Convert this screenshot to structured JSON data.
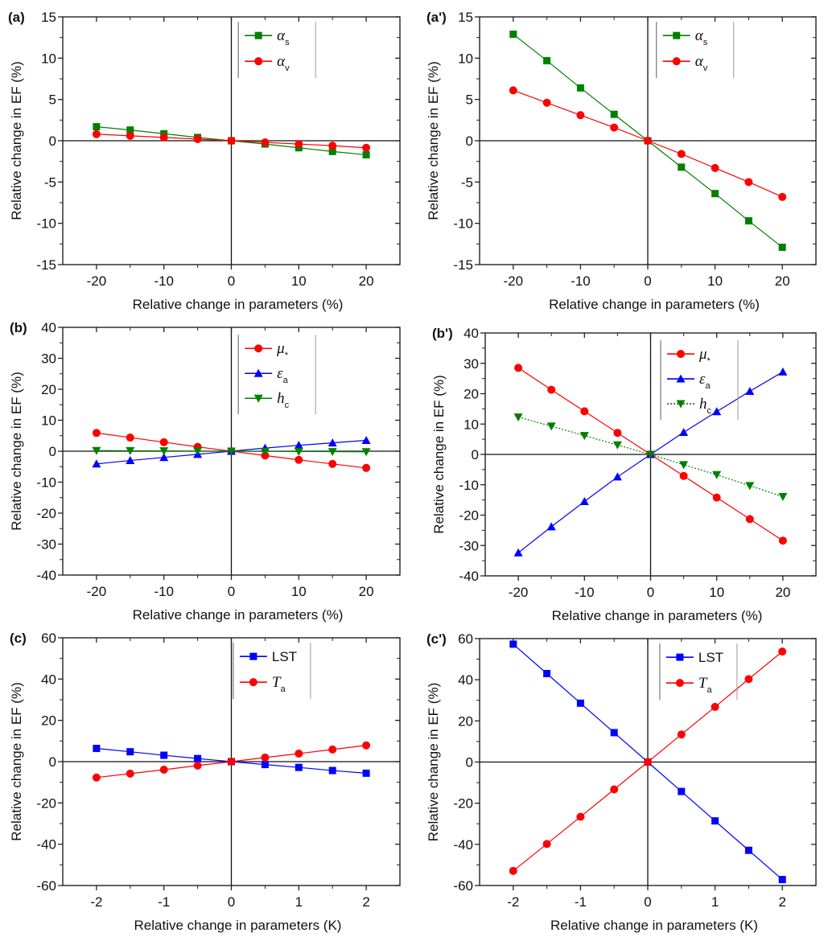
{
  "chart_data": [
    {
      "id": "a",
      "panel_label": "(a)",
      "type": "line",
      "xlabel": "Relative change in parameters (%)",
      "ylabel": "Relative change in EF (%)",
      "xlim": [
        -25,
        25
      ],
      "ylim": [
        -15,
        15
      ],
      "xticks": [
        -20,
        -10,
        0,
        10,
        20
      ],
      "xminor": [
        -15,
        -5,
        5,
        15
      ],
      "yticks": [
        -15,
        -10,
        -5,
        0,
        5,
        10,
        15
      ],
      "x": [
        -20,
        -15,
        -10,
        -5,
        0,
        5,
        10,
        15,
        20
      ],
      "legend_position": "top-center-right",
      "series": [
        {
          "name": "α",
          "sub": "s",
          "color": "#008000",
          "marker": "square",
          "line": "solid",
          "values": [
            1.7,
            1.3,
            0.85,
            0.4,
            0,
            -0.4,
            -0.85,
            -1.3,
            -1.7
          ]
        },
        {
          "name": "α",
          "sub": "v",
          "color": "#ff0000",
          "marker": "circle",
          "line": "solid",
          "values": [
            0.8,
            0.6,
            0.4,
            0.2,
            0,
            -0.2,
            -0.4,
            -0.6,
            -0.85
          ]
        }
      ]
    },
    {
      "id": "a2",
      "panel_label": "(a')",
      "type": "line",
      "xlabel": "Relative change in parameters (%)",
      "ylabel": "Relative change in EF (%)",
      "xlim": [
        -25,
        25
      ],
      "ylim": [
        -15,
        15
      ],
      "xticks": [
        -20,
        -10,
        0,
        10,
        20
      ],
      "xminor": [
        -15,
        -5,
        5,
        15
      ],
      "yticks": [
        -15,
        -10,
        -5,
        0,
        5,
        10,
        15
      ],
      "x": [
        -20,
        -15,
        -10,
        -5,
        0,
        5,
        10,
        15,
        20
      ],
      "legend_position": "top-center-right",
      "series": [
        {
          "name": "α",
          "sub": "s",
          "color": "#008000",
          "marker": "square",
          "line": "solid",
          "values": [
            12.9,
            9.7,
            6.4,
            3.2,
            0,
            -3.2,
            -6.4,
            -9.7,
            -12.9
          ]
        },
        {
          "name": "α",
          "sub": "v",
          "color": "#ff0000",
          "marker": "circle",
          "line": "solid",
          "values": [
            6.1,
            4.6,
            3.1,
            1.6,
            0,
            -1.6,
            -3.3,
            -5.0,
            -6.8
          ]
        }
      ]
    },
    {
      "id": "b",
      "panel_label": "(b)",
      "type": "line",
      "xlabel": "Relative change in parameters (%)",
      "ylabel": "Relative change in EF (%)",
      "xlim": [
        -25,
        25
      ],
      "ylim": [
        -40,
        40
      ],
      "xticks": [
        -20,
        -10,
        0,
        10,
        20
      ],
      "xminor": [
        -15,
        -5,
        5,
        15
      ],
      "yticks": [
        -40,
        -30,
        -20,
        -10,
        0,
        10,
        20,
        30,
        40
      ],
      "x": [
        -20,
        -15,
        -10,
        -5,
        0,
        5,
        10,
        15,
        20
      ],
      "legend_position": "top-center-right",
      "series": [
        {
          "name": "μ",
          "sub": "*",
          "color": "#ff0000",
          "marker": "circle",
          "line": "solid",
          "values": [
            5.9,
            4.4,
            2.9,
            1.4,
            0,
            -1.4,
            -2.8,
            -4.1,
            -5.4
          ]
        },
        {
          "name": "ε",
          "sub": "a",
          "color": "#0000ff",
          "marker": "triangle-up",
          "line": "solid",
          "values": [
            -4.1,
            -3.0,
            -2.0,
            -1.0,
            0,
            1.0,
            1.9,
            2.7,
            3.5
          ]
        },
        {
          "name": "h",
          "sub": "c",
          "color": "#008000",
          "marker": "triangle-down",
          "line": "solid",
          "values": [
            0.2,
            0.15,
            0.1,
            0.05,
            0,
            -0.05,
            -0.1,
            -0.15,
            -0.2
          ]
        }
      ]
    },
    {
      "id": "b2",
      "panel_label": "(b')",
      "type": "line",
      "xlabel": "Relative change in parameters (%)",
      "ylabel": "Relative change in EF (%)",
      "xlim": [
        -25,
        25
      ],
      "ylim": [
        -40,
        40
      ],
      "xticks": [
        -20,
        -10,
        0,
        10,
        20
      ],
      "xminor": [
        -15,
        -5,
        5,
        15
      ],
      "yticks": [
        -40,
        -30,
        -20,
        -10,
        0,
        10,
        20,
        30,
        40
      ],
      "x": [
        -20,
        -15,
        -10,
        -5,
        0,
        5,
        10,
        15,
        20
      ],
      "legend_position": "top-center-right",
      "series": [
        {
          "name": "μ",
          "sub": "*",
          "color": "#ff0000",
          "marker": "circle",
          "line": "solid",
          "values": [
            28.5,
            21.3,
            14.2,
            7.1,
            0,
            -7.1,
            -14.2,
            -21.3,
            -28.4
          ]
        },
        {
          "name": "ε",
          "sub": "a",
          "color": "#0000ff",
          "marker": "triangle-up",
          "line": "solid",
          "values": [
            -32.4,
            -23.8,
            -15.5,
            -7.4,
            0,
            7.3,
            14.1,
            20.8,
            27.2
          ]
        },
        {
          "name": "h",
          "sub": "c",
          "color": "#008000",
          "marker": "triangle-down",
          "line": "dotted",
          "values": [
            12.3,
            9.3,
            6.2,
            3.1,
            0,
            -3.4,
            -6.7,
            -10.3,
            -13.9
          ]
        }
      ]
    },
    {
      "id": "c",
      "panel_label": "(c)",
      "type": "line",
      "xlabel": "Relative change in parameters (K)",
      "ylabel": "Relative change in EF (%)",
      "xlim": [
        -2.5,
        2.5
      ],
      "ylim": [
        -60,
        60
      ],
      "xticks": [
        -2,
        -1,
        0,
        1,
        2
      ],
      "xminor": [
        -1.5,
        -0.5,
        0.5,
        1.5
      ],
      "yticks": [
        -60,
        -40,
        -20,
        0,
        20,
        40,
        60
      ],
      "x": [
        -2,
        -1.5,
        -1,
        -0.5,
        0,
        0.5,
        1,
        1.5,
        2
      ],
      "legend_position": "top-center-right",
      "series": [
        {
          "name": "LST",
          "sub": "",
          "color": "#0000ff",
          "marker": "square",
          "line": "solid",
          "values": [
            6.4,
            4.8,
            3.1,
            1.5,
            0,
            -1.4,
            -2.8,
            -4.3,
            -5.6
          ]
        },
        {
          "name": "T",
          "sub": "a",
          "color": "#ff0000",
          "marker": "circle",
          "line": "solid",
          "values": [
            -7.7,
            -5.8,
            -3.9,
            -1.9,
            0,
            2.0,
            3.9,
            5.9,
            7.9
          ]
        }
      ]
    },
    {
      "id": "c2",
      "panel_label": "(c')",
      "type": "line",
      "xlabel": "Relative change in parameters (K)",
      "ylabel": "Relative change in EF (%)",
      "xlim": [
        -2.5,
        2.5
      ],
      "ylim": [
        -60,
        60
      ],
      "xticks": [
        -2,
        -1,
        0,
        1,
        2
      ],
      "xminor": [
        -1.5,
        -0.5,
        0.5,
        1.5
      ],
      "yticks": [
        -60,
        -40,
        -20,
        0,
        20,
        40,
        60
      ],
      "x": [
        -2,
        -1.5,
        -1,
        -0.5,
        0,
        0.5,
        1,
        1.5,
        2
      ],
      "legend_position": "top-center-right",
      "series": [
        {
          "name": "LST",
          "sub": "",
          "color": "#0000ff",
          "marker": "square",
          "line": "solid",
          "values": [
            57.3,
            43.0,
            28.6,
            14.3,
            0,
            -14.3,
            -28.6,
            -42.9,
            -57.1
          ]
        },
        {
          "name": "T",
          "sub": "a",
          "color": "#ff0000",
          "marker": "circle",
          "line": "solid",
          "values": [
            -52.9,
            -39.8,
            -26.6,
            -13.3,
            0,
            13.4,
            26.8,
            40.3,
            53.7
          ]
        }
      ]
    }
  ]
}
